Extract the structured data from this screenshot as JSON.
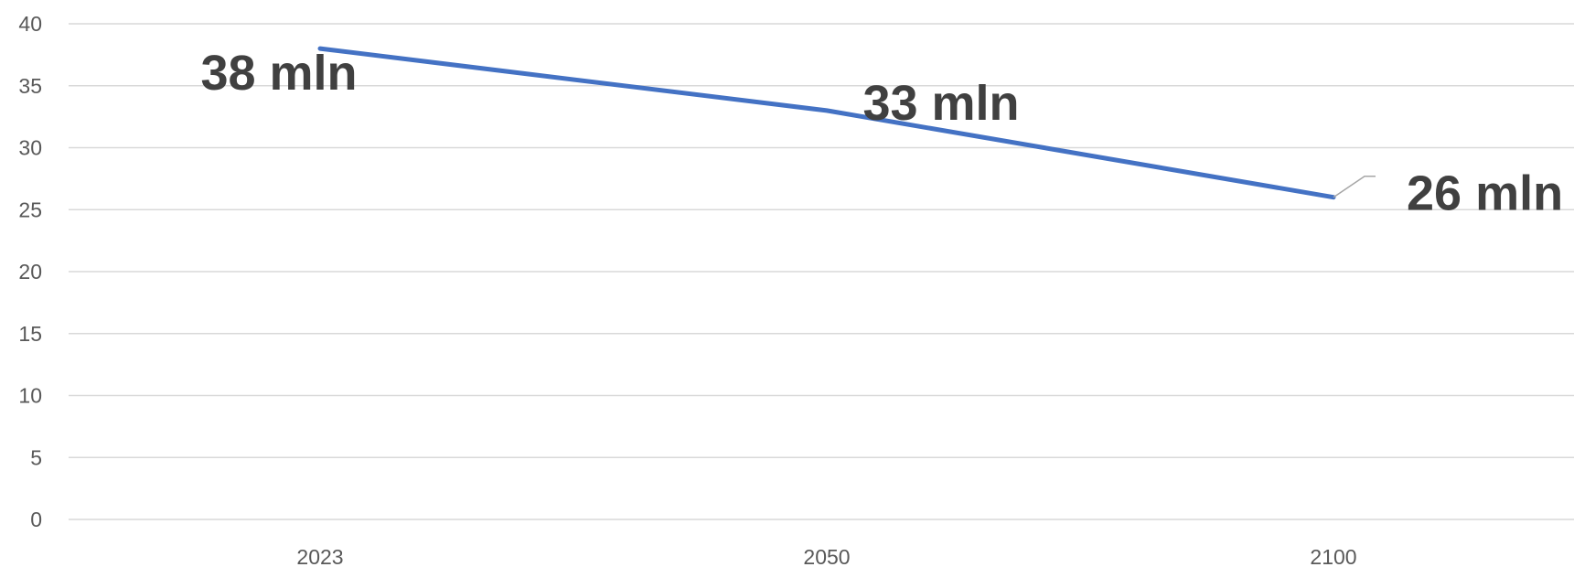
{
  "chart_data": {
    "type": "line",
    "categories": [
      "2023",
      "2050",
      "2100"
    ],
    "series": [
      {
        "values": [
          38,
          33,
          26
        ],
        "labels": [
          "38 mln",
          "33 mln",
          "26 mln"
        ]
      }
    ],
    "ylim": [
      0,
      40
    ],
    "yticks": [
      0,
      5,
      10,
      15,
      20,
      25,
      30,
      35,
      40
    ],
    "ytick_labels": [
      "0",
      "5",
      "10",
      "15",
      "20",
      "25",
      "30",
      "35",
      "40"
    ],
    "grid": true,
    "title": "",
    "xlabel": "",
    "ylabel": "",
    "colors": {
      "series": "#4472c4",
      "grid": "#d9d9d9",
      "ticks": "#595959",
      "labels": "#404040"
    }
  }
}
